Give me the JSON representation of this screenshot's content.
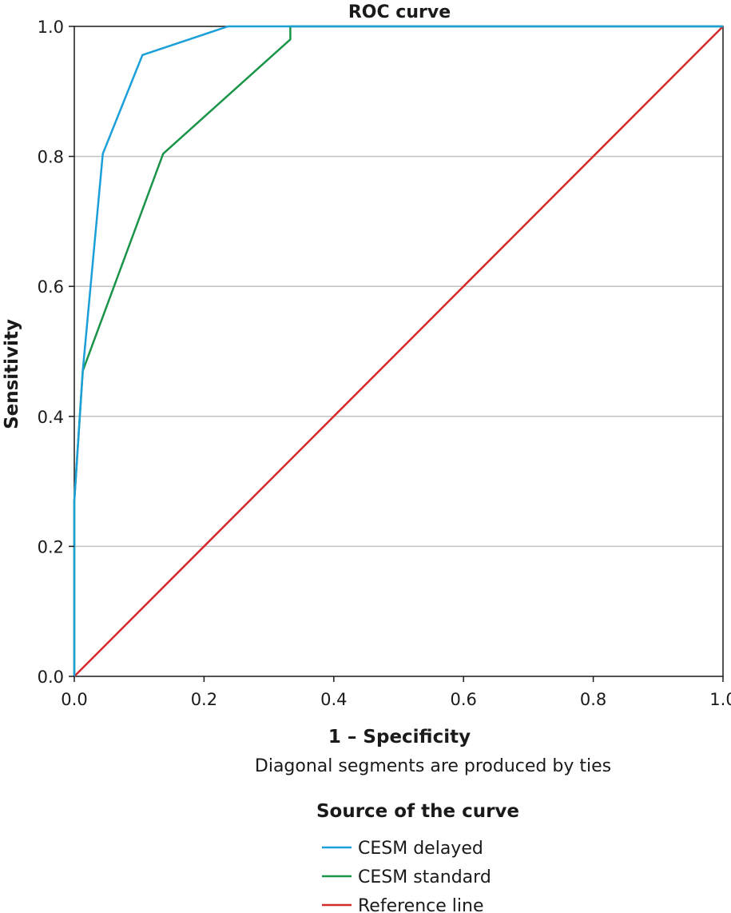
{
  "chart_data": {
    "type": "line",
    "title": "ROC curve",
    "xlabel": "1 – Specificity",
    "ylabel": "Sensitivity",
    "note": "Diagonal segments are produced by ties",
    "xlim": [
      0,
      1
    ],
    "ylim": [
      0,
      1
    ],
    "x_ticks": [
      "0.0",
      "0.2",
      "0.4",
      "0.6",
      "0.8",
      "1.0"
    ],
    "y_ticks": [
      "0.0",
      "0.2",
      "0.4",
      "0.6",
      "0.8",
      "1.0"
    ],
    "grid": "horizontal",
    "legend": {
      "title": "Source of the curve",
      "placement": "bottom"
    },
    "series": [
      {
        "name": "CESM delayed",
        "color": "#1a9fd9",
        "points": [
          [
            0,
            0
          ],
          [
            0,
            0.27
          ],
          [
            0.013,
            0.47
          ],
          [
            0.044,
            0.804
          ],
          [
            0.105,
            0.956
          ],
          [
            0.237,
            1.0
          ],
          [
            1.0,
            1.0
          ]
        ]
      },
      {
        "name": "CESM standard",
        "color": "#1a9448",
        "points": [
          [
            0,
            0
          ],
          [
            0,
            0.27
          ],
          [
            0.013,
            0.47
          ],
          [
            0.137,
            0.804
          ],
          [
            0.333,
            0.98
          ],
          [
            0.333,
            1.0
          ],
          [
            1.0,
            1.0
          ]
        ]
      },
      {
        "name": "Reference line",
        "color": "#d62a2a",
        "points": [
          [
            0,
            0
          ],
          [
            1,
            1
          ]
        ]
      }
    ]
  }
}
